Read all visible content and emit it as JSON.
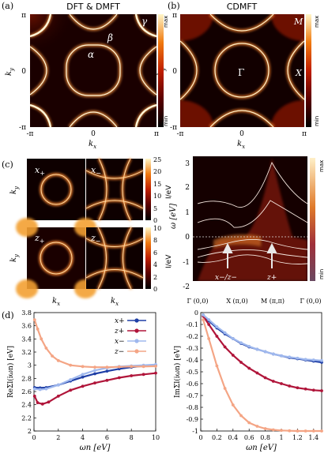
{
  "colors": {
    "bg_dark": "#1a0000",
    "fs_bright": "#ffd070",
    "x_plus": "#1f3fa6",
    "z_plus": "#b0153a",
    "x_minus": "#9fb8ee",
    "z_minus": "#f4a585"
  },
  "panel_a": {
    "label": "(a)",
    "title": "DFT & DMFT",
    "xlabel": "k",
    "xlabel_sub": "x",
    "ylabel": "k",
    "ylabel_sub": "y",
    "ticks": [
      "-π",
      "0",
      "π"
    ],
    "yticks": [
      "π",
      "0",
      "-π"
    ],
    "bands": [
      "α",
      "β",
      "γ"
    ],
    "cbar": {
      "max": "max",
      "min": "min"
    }
  },
  "panel_b": {
    "label": "(b)",
    "title": "CDMFT",
    "xlabel": "k",
    "xlabel_sub": "x",
    "ylabel": "k",
    "ylabel_sub": "y",
    "ticks": [
      "-π",
      "0",
      "π"
    ],
    "yticks": [
      "π",
      "0",
      "-π"
    ],
    "points": [
      "Γ",
      "X",
      "M"
    ],
    "cbar": {
      "max": "max",
      "min": "min"
    }
  },
  "panel_c": {
    "label": "(c)",
    "maps": [
      {
        "name": "x",
        "sub": "+"
      },
      {
        "name": "x",
        "sub": "−"
      },
      {
        "name": "z",
        "sub": "+"
      },
      {
        "name": "z",
        "sub": "−"
      }
    ],
    "ylabel": "k",
    "ylabel_sub": "y",
    "xlabel": "k",
    "xlabel_sub": "x",
    "cbar_top": {
      "ticks": [
        "25",
        "20",
        "15",
        "10",
        "5",
        "0"
      ],
      "label": "I/eV"
    },
    "cbar_bot": {
      "ticks": [
        "10",
        "8",
        "6",
        "4",
        "2",
        "0"
      ],
      "label": "I/eV"
    }
  },
  "panel_c_spectrum": {
    "ylabel": "ω [eV]",
    "yticks": [
      "3",
      "2",
      "1",
      "0",
      "-1",
      "-2"
    ],
    "xticks": [
      "Γ (0,0)",
      "X (π,0)",
      "M (π,π)",
      "Γ (0,0)"
    ],
    "annot_left": "x−/z−",
    "annot_right": "z+",
    "cbar": {
      "max": "max",
      "min": "min"
    }
  },
  "panel_d": {
    "label": "(d)"
  },
  "chart_data": [
    {
      "type": "line",
      "title": "",
      "xlabel": "ωn [eV]",
      "ylabel": "ReΣl(iωn) [eV]",
      "xlim": [
        0,
        10
      ],
      "ylim": [
        2.0,
        3.8
      ],
      "xticks": [
        "0",
        "2",
        "4",
        "6",
        "8",
        "10"
      ],
      "yticks": [
        "2",
        "2.2",
        "2.4",
        "2.6",
        "2.8",
        "3",
        "3.2",
        "3.4",
        "3.6",
        "3.8"
      ],
      "legend_position": "top-right",
      "series": [
        {
          "name": "x+",
          "x": [
            0.05,
            0.5,
            1,
            2,
            3,
            4,
            5,
            6,
            7,
            8,
            9,
            10
          ],
          "values": [
            2.66,
            2.655,
            2.66,
            2.7,
            2.76,
            2.82,
            2.87,
            2.91,
            2.945,
            2.97,
            2.99,
            3.0
          ]
        },
        {
          "name": "z+",
          "x": [
            0.05,
            0.3,
            0.7,
            1.2,
            2,
            3,
            4,
            5,
            6,
            7,
            8,
            9,
            10
          ],
          "values": [
            2.53,
            2.43,
            2.41,
            2.44,
            2.53,
            2.62,
            2.68,
            2.73,
            2.77,
            2.81,
            2.84,
            2.86,
            2.88
          ]
        },
        {
          "name": "x−",
          "x": [
            0.05,
            0.5,
            1,
            2,
            3,
            4,
            5,
            6,
            7,
            8,
            9,
            10
          ],
          "values": [
            2.64,
            2.63,
            2.64,
            2.7,
            2.78,
            2.86,
            2.92,
            2.96,
            2.98,
            2.99,
            3.0,
            3.01
          ]
        },
        {
          "name": "z−",
          "x": [
            0.05,
            0.3,
            0.6,
            1,
            1.5,
            2,
            3,
            4,
            5,
            6,
            7,
            8,
            9,
            10
          ],
          "values": [
            3.69,
            3.55,
            3.4,
            3.26,
            3.14,
            3.07,
            3.0,
            2.98,
            2.97,
            2.97,
            2.975,
            2.98,
            2.98,
            2.985
          ]
        }
      ]
    },
    {
      "type": "line",
      "title": "",
      "xlabel": "ωn [eV]",
      "ylabel": "ImΣl(iωn) [eV]",
      "xlim": [
        0,
        1.5
      ],
      "ylim": [
        -1.0,
        0.0
      ],
      "xticks": [
        "0",
        "0.2",
        "0.4",
        "0.6",
        "0.8",
        "1",
        "1.2",
        "1.4"
      ],
      "yticks": [
        "0",
        "-0.1",
        "-0.2",
        "-0.3",
        "-0.4",
        "-0.5",
        "-0.6",
        "-0.7",
        "-0.8",
        "-0.9",
        "-1"
      ],
      "series": [
        {
          "name": "x+",
          "x": [
            0.03,
            0.1,
            0.2,
            0.3,
            0.4,
            0.5,
            0.6,
            0.7,
            0.8,
            0.9,
            1.0,
            1.1,
            1.2,
            1.3,
            1.4,
            1.5
          ],
          "values": [
            -0.02,
            -0.07,
            -0.13,
            -0.18,
            -0.22,
            -0.26,
            -0.29,
            -0.31,
            -0.33,
            -0.35,
            -0.365,
            -0.38,
            -0.39,
            -0.4,
            -0.41,
            -0.42
          ]
        },
        {
          "name": "z+",
          "x": [
            0.03,
            0.1,
            0.2,
            0.3,
            0.4,
            0.5,
            0.6,
            0.7,
            0.8,
            0.9,
            1.0,
            1.1,
            1.2,
            1.3,
            1.4,
            1.5
          ],
          "values": [
            -0.03,
            -0.1,
            -0.2,
            -0.29,
            -0.36,
            -0.42,
            -0.47,
            -0.51,
            -0.55,
            -0.58,
            -0.6,
            -0.62,
            -0.635,
            -0.645,
            -0.655,
            -0.66
          ]
        },
        {
          "name": "x−",
          "x": [
            0.03,
            0.1,
            0.2,
            0.3,
            0.4,
            0.5,
            0.6,
            0.7,
            0.8,
            0.9,
            1.0,
            1.1,
            1.2,
            1.3,
            1.4,
            1.5
          ],
          "values": [
            -0.02,
            -0.06,
            -0.12,
            -0.17,
            -0.22,
            -0.255,
            -0.285,
            -0.31,
            -0.33,
            -0.35,
            -0.365,
            -0.375,
            -0.385,
            -0.395,
            -0.4,
            -0.405
          ]
        },
        {
          "name": "z−",
          "x": [
            0.03,
            0.1,
            0.2,
            0.3,
            0.4,
            0.5,
            0.6,
            0.7,
            0.8,
            0.9,
            1.0,
            1.1,
            1.2,
            1.3,
            1.4,
            1.5
          ],
          "values": [
            -0.06,
            -0.22,
            -0.45,
            -0.64,
            -0.78,
            -0.87,
            -0.93,
            -0.96,
            -0.98,
            -0.99,
            -0.995,
            -0.998,
            -1.0,
            -1.0,
            -1.0,
            -1.0
          ]
        }
      ]
    }
  ]
}
